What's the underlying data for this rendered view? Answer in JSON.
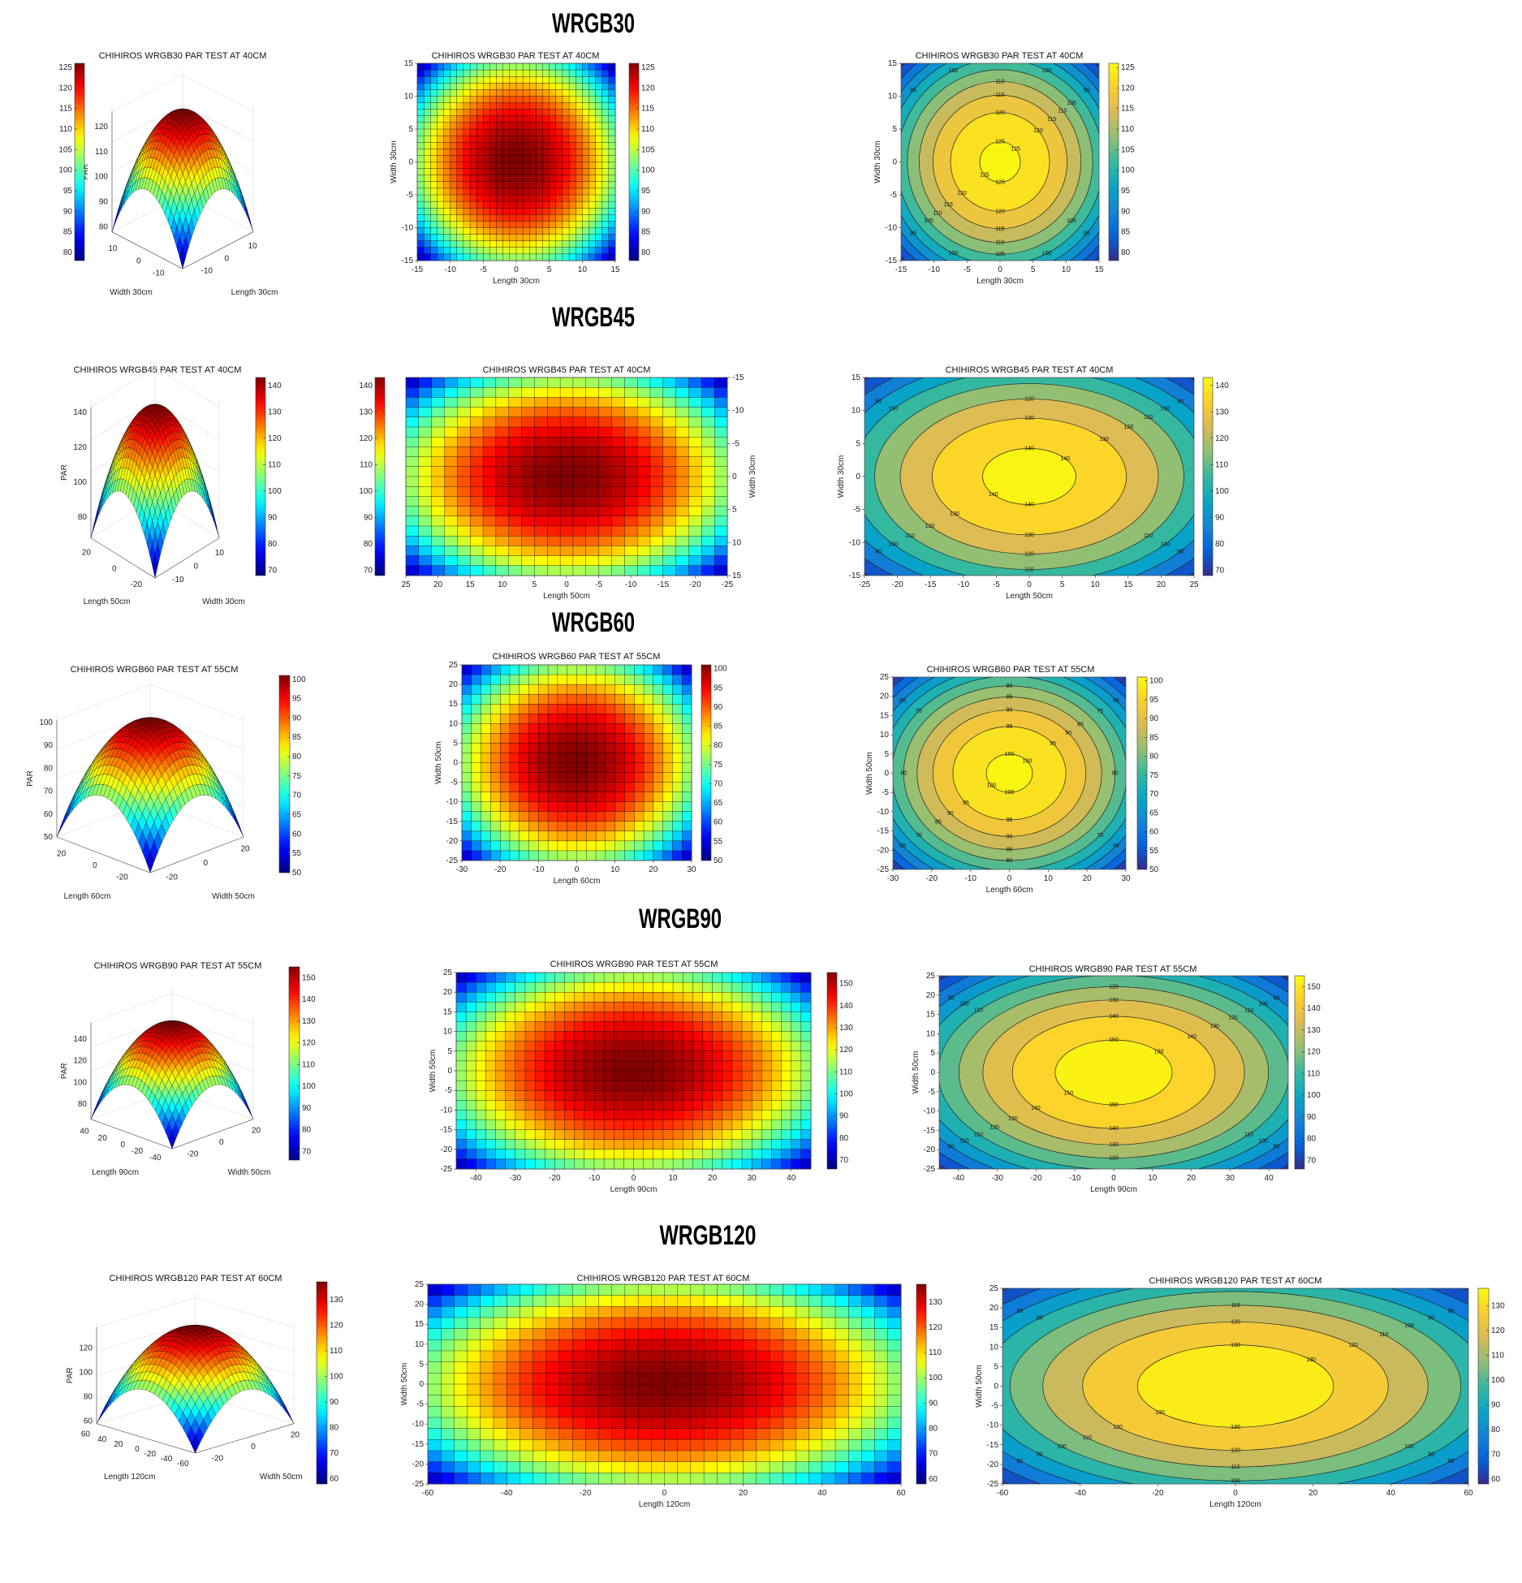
{
  "models": [
    {
      "name": "WRGB30",
      "title": "CHIHIROS WRGB30 PAR TEST AT 40CM",
      "length_label": "Length 30cm",
      "width_label": "Width 30cm",
      "z_label": "PAR",
      "x_range": [
        -15,
        15
      ],
      "y_range": [
        -15,
        15
      ],
      "par_center": 126,
      "par_corner": 78,
      "grid_cells": [
        30,
        30
      ],
      "xticks": [
        -15,
        -10,
        -5,
        0,
        5,
        10,
        15
      ],
      "yticks": [
        -15,
        -10,
        -5,
        0,
        5,
        10,
        15
      ],
      "heatmap_axes_reversed": false,
      "colorbar_ticks": [
        80,
        85,
        90,
        95,
        100,
        105,
        110,
        115,
        120,
        125
      ],
      "contour_levels": [
        80,
        85,
        90,
        95,
        100,
        105,
        110,
        115,
        120,
        125
      ],
      "surface": {
        "zticks": [
          80,
          90,
          100,
          110,
          120
        ],
        "left_axis_label": "Width 30cm",
        "left_ticks": [
          10,
          0,
          -10
        ],
        "left_range": [
          -15,
          15
        ],
        "right_axis_label": "Length 30cm",
        "right_ticks": [
          -10,
          0,
          10
        ],
        "right_range": [
          -15,
          15
        ],
        "colorbar_side": "left"
      }
    },
    {
      "name": "WRGB45",
      "title": "CHIHIROS WRGB45 PAR TEST AT 40CM",
      "length_label": "Length 50cm",
      "width_label": "Width 30cm",
      "z_label": "PAR",
      "x_range": [
        -25,
        25
      ],
      "y_range": [
        -15,
        15
      ],
      "par_center": 143,
      "par_corner": 68,
      "grid_cells": [
        25,
        20
      ],
      "xticks": [
        25,
        20,
        15,
        10,
        5,
        0,
        -5,
        -10,
        -15,
        -20,
        -25
      ],
      "yticks": [
        -15,
        -10,
        -5,
        0,
        5,
        10,
        15
      ],
      "contour_xticks": [
        -25,
        -20,
        -15,
        -10,
        -5,
        0,
        5,
        10,
        15,
        20,
        25
      ],
      "heatmap_axes_reversed": true,
      "colorbar_ticks": [
        70,
        80,
        90,
        100,
        110,
        120,
        130,
        140
      ],
      "contour_levels": [
        70,
        80,
        90,
        100,
        110,
        120,
        130,
        140
      ],
      "surface": {
        "zticks": [
          80,
          100,
          120,
          140
        ],
        "left_axis_label": "Length 50cm",
        "left_ticks": [
          20,
          0,
          -20
        ],
        "left_range": [
          -25,
          25
        ],
        "right_axis_label": "Width 30cm",
        "right_ticks": [
          10,
          0,
          -10
        ],
        "right_range": [
          -15,
          15
        ],
        "colorbar_side": "right"
      }
    },
    {
      "name": "WRGB60",
      "title": "CHIHIROS WRGB60 PAR TEST AT 55CM",
      "length_label": "Length 60cm",
      "width_label": "Width 50cm",
      "z_label": "PAR",
      "x_range": [
        -30,
        30
      ],
      "y_range": [
        -25,
        25
      ],
      "par_center": 101,
      "par_corner": 50,
      "grid_cells": [
        24,
        20
      ],
      "xticks": [
        -30,
        -20,
        -10,
        0,
        10,
        20,
        30
      ],
      "yticks": [
        -25,
        -20,
        -15,
        -10,
        -5,
        0,
        5,
        10,
        15,
        20,
        25
      ],
      "heatmap_axes_reversed": false,
      "colorbar_ticks": [
        50,
        55,
        60,
        65,
        70,
        75,
        80,
        85,
        90,
        95,
        100
      ],
      "contour_levels": [
        55,
        60,
        65,
        70,
        75,
        80,
        85,
        90,
        95,
        100
      ],
      "surface": {
        "zticks": [
          50,
          60,
          70,
          80,
          90,
          100
        ],
        "left_axis_label": "Length 60cm",
        "left_ticks": [
          20,
          0,
          -20
        ],
        "left_range": [
          -30,
          30
        ],
        "right_axis_label": "Width 50cm",
        "right_ticks": [
          20,
          0,
          -20
        ],
        "right_range": [
          -25,
          25
        ],
        "colorbar_side": "right"
      }
    },
    {
      "name": "WRGB90",
      "title": "CHIHIROS WRGB90 PAR TEST AT 55CM",
      "length_label": "Length 90cm",
      "width_label": "Width 50cm",
      "z_label": "PAR",
      "x_range": [
        -45,
        45
      ],
      "y_range": [
        -25,
        25
      ],
      "par_center": 155,
      "par_corner": 66,
      "grid_cells": [
        36,
        20
      ],
      "xticks": [
        -40,
        -30,
        -20,
        -10,
        0,
        10,
        20,
        30,
        40
      ],
      "yticks": [
        -25,
        -20,
        -15,
        -10,
        -5,
        0,
        5,
        10,
        15,
        20,
        25
      ],
      "heatmap_axes_reversed": false,
      "colorbar_ticks": [
        70,
        80,
        90,
        100,
        110,
        120,
        130,
        140,
        150
      ],
      "contour_levels": [
        70,
        80,
        90,
        100,
        110,
        120,
        130,
        140,
        150
      ],
      "surface": {
        "zticks": [
          80,
          100,
          120,
          140
        ],
        "left_axis_label": "Length 90cm",
        "left_ticks": [
          40,
          20,
          0,
          -20,
          -40
        ],
        "left_range": [
          -45,
          45
        ],
        "right_axis_label": "Width 50cm",
        "right_ticks": [
          20,
          0,
          -20
        ],
        "right_range": [
          -25,
          25
        ],
        "colorbar_side": "right"
      }
    },
    {
      "name": "WRGB120",
      "title": "CHIHIROS WRGB120 PAR TEST AT 60CM",
      "length_label": "Length 120cm",
      "width_label": "Width 50cm",
      "z_label": "PAR",
      "x_range": [
        -60,
        60
      ],
      "y_range": [
        -25,
        25
      ],
      "par_center": 137,
      "par_corner": 58,
      "grid_cells": [
        36,
        18
      ],
      "xticks": [
        -60,
        -40,
        -20,
        0,
        20,
        40,
        60
      ],
      "yticks": [
        -25,
        -20,
        -15,
        -10,
        -5,
        0,
        5,
        10,
        15,
        20,
        25
      ],
      "heatmap_axes_reversed": false,
      "colorbar_ticks": [
        60,
        70,
        80,
        90,
        100,
        110,
        120,
        130
      ],
      "contour_levels": [
        60,
        70,
        80,
        90,
        100,
        110,
        120,
        130
      ],
      "surface": {
        "zticks": [
          60,
          80,
          100,
          120
        ],
        "left_axis_label": "Length 120cm",
        "left_ticks": [
          60,
          40,
          20,
          0,
          -20,
          -40,
          -60
        ],
        "left_range": [
          -60,
          60
        ],
        "right_axis_label": "Width 50cm",
        "right_ticks": [
          20,
          0,
          -20
        ],
        "right_range": [
          -25,
          25
        ],
        "colorbar_side": "right"
      }
    }
  ],
  "chart_data": [
    {
      "type": "heatmap",
      "title": "CHIHIROS WRGB30 PAR TEST AT 40CM",
      "xlabel": "Length 30cm",
      "ylabel": "Width 30cm",
      "xlim": [
        -15,
        15
      ],
      "ylim": [
        -15,
        15
      ],
      "zlabel": "PAR",
      "center_value": 126,
      "corner_value": 78
    },
    {
      "type": "heatmap",
      "title": "CHIHIROS WRGB45 PAR TEST AT 40CM",
      "xlabel": "Length 50cm",
      "ylabel": "Width 30cm",
      "xlim": [
        -25,
        25
      ],
      "ylim": [
        -15,
        15
      ],
      "zlabel": "PAR",
      "center_value": 143,
      "corner_value": 68
    },
    {
      "type": "heatmap",
      "title": "CHIHIROS WRGB60 PAR TEST AT 55CM",
      "xlabel": "Length 60cm",
      "ylabel": "Width 50cm",
      "xlim": [
        -30,
        30
      ],
      "ylim": [
        -25,
        25
      ],
      "zlabel": "PAR",
      "center_value": 101,
      "corner_value": 50
    },
    {
      "type": "heatmap",
      "title": "CHIHIROS WRGB90 PAR TEST AT 55CM",
      "xlabel": "Length 90cm",
      "ylabel": "Width 50cm",
      "xlim": [
        -45,
        45
      ],
      "ylim": [
        -25,
        25
      ],
      "zlabel": "PAR",
      "center_value": 155,
      "corner_value": 66
    },
    {
      "type": "heatmap",
      "title": "CHIHIROS WRGB120 PAR TEST AT 60CM",
      "xlabel": "Length 120cm",
      "ylabel": "Width 50cm",
      "xlim": [
        -60,
        60
      ],
      "ylim": [
        -25,
        25
      ],
      "zlabel": "PAR",
      "center_value": 137,
      "corner_value": 58
    }
  ]
}
